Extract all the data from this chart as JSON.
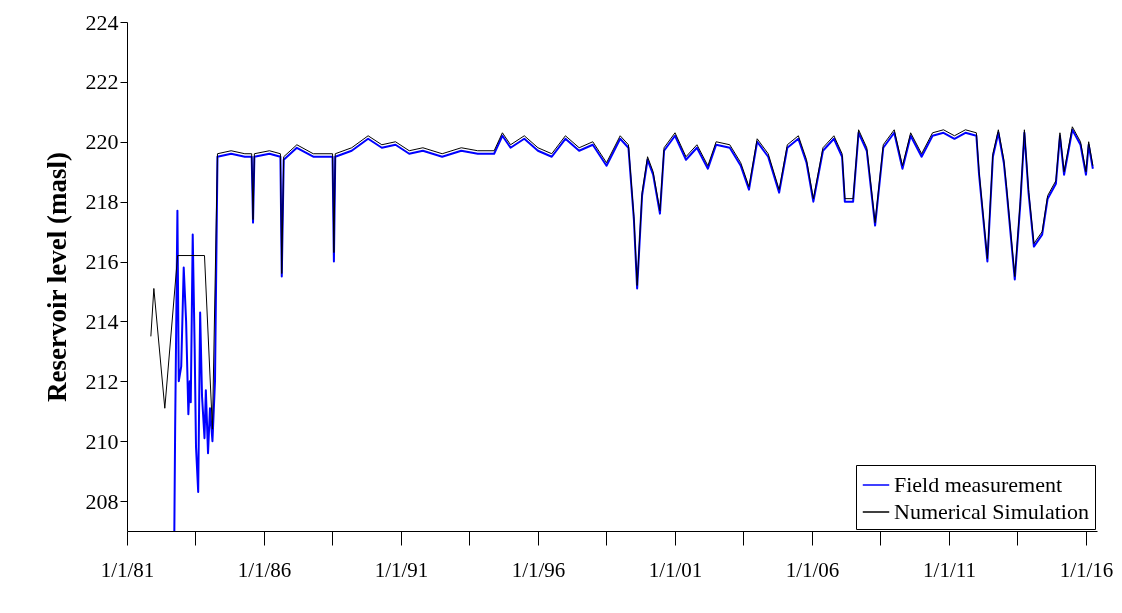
{
  "chart_data": {
    "type": "line",
    "ylabel": "Reservoir level (masl)",
    "xlim": [
      "1981-01-01",
      "2016-05-27"
    ],
    "ylim": [
      207,
      224
    ],
    "xticks": [
      {
        "value": "1981-01-01",
        "label": "1/1/81"
      },
      {
        "value": "1983-07-02",
        "label": null
      },
      {
        "value": "1986-01-01",
        "label": "1/1/86"
      },
      {
        "value": "1988-07-02",
        "label": null
      },
      {
        "value": "1991-01-01",
        "label": "1/1/91"
      },
      {
        "value": "1993-07-02",
        "label": null
      },
      {
        "value": "1996-01-01",
        "label": "1/1/96"
      },
      {
        "value": "1998-07-02",
        "label": null
      },
      {
        "value": "2001-01-01",
        "label": "1/1/01"
      },
      {
        "value": "2003-07-02",
        "label": null
      },
      {
        "value": "2006-01-01",
        "label": "1/1/06"
      },
      {
        "value": "2008-07-02",
        "label": null
      },
      {
        "value": "2011-01-01",
        "label": "1/1/11"
      },
      {
        "value": "2013-07-02",
        "label": null
      },
      {
        "value": "2016-01-01",
        "label": "1/1/16"
      }
    ],
    "yticks": [
      208,
      210,
      212,
      214,
      216,
      218,
      220,
      222,
      224
    ],
    "grid": false,
    "legend": "bottom right",
    "line_style": "solid",
    "series": [
      {
        "name": "Field measurement",
        "color": "#0000ff",
        "x": [
          "1982-09-24",
          "1982-10-05",
          "1982-11-04",
          "1982-11-22",
          "1982-12-25",
          "1983-01-27",
          "1983-02-28",
          "1983-03-30",
          "1983-04-17",
          "1983-05-01",
          "1983-05-27",
          "1983-06-22",
          "1983-07-10",
          "1983-08-08",
          "1983-09-03",
          "1983-09-28",
          "1983-10-31",
          "1983-11-18",
          "1983-12-17",
          "1984-01-12",
          "1984-02-14",
          "1984-03-19",
          "1984-04-21",
          "1984-10-20",
          "1985-04-21",
          "1985-07-21",
          "1985-08-08",
          "1985-08-26",
          "1986-03-15",
          "1986-08-08",
          "1986-08-26",
          "1986-09-21",
          "1987-03-15",
          "1987-10-20",
          "1988-07-03",
          "1988-07-21",
          "1988-08-08",
          "1989-03-15",
          "1989-10-20",
          "1990-04-21",
          "1990-10-20",
          "1991-04-21",
          "1991-10-20",
          "1992-07-03",
          "1993-03-15",
          "1993-10-20",
          "1994-05-27",
          "1994-09-14",
          "1995-01-01",
          "1995-07-03",
          "1996-01-01",
          "1996-07-03",
          "1997-01-01",
          "1997-07-03",
          "1998-01-01",
          "1998-07-03",
          "1999-01-01",
          "1999-04-21",
          "1999-07-03",
          "1999-08-15",
          "1999-10-20",
          "2000-01-01",
          "2000-03-15",
          "2000-06-14",
          "2000-08-08",
          "2001-01-01",
          "2001-05-27",
          "2001-10-20",
          "2002-03-15",
          "2002-07-03",
          "2003-01-01",
          "2003-05-27",
          "2003-09-14",
          "2004-01-01",
          "2004-05-27",
          "2004-10-20",
          "2005-02-06",
          "2005-07-03",
          "2005-10-20",
          "2006-01-19",
          "2006-05-27",
          "2006-10-20",
          "2007-02-06",
          "2007-03-15",
          "2007-07-03",
          "2007-09-14",
          "2008-01-01",
          "2008-04-21",
          "2008-08-08",
          "2009-01-01",
          "2009-04-21",
          "2009-08-08",
          "2010-01-01",
          "2010-05-27",
          "2010-10-20",
          "2011-03-15",
          "2011-08-08",
          "2012-01-01",
          "2012-02-06",
          "2012-05-27",
          "2012-08-08",
          "2012-10-20",
          "2013-01-01",
          "2013-02-06",
          "2013-05-27",
          "2013-08-08",
          "2013-10-02",
          "2013-11-26",
          "2014-02-06",
          "2014-05-27",
          "2014-08-08",
          "2014-11-26",
          "2015-01-19",
          "2015-03-15",
          "2015-07-03",
          "2015-10-20",
          "2016-01-01",
          "2016-02-06",
          "2016-04-02"
        ],
        "values": [
          207.0,
          210.5,
          217.7,
          212.0,
          212.5,
          215.8,
          214.0,
          210.9,
          212.0,
          211.3,
          216.9,
          213.1,
          209.8,
          208.3,
          214.3,
          211.5,
          210.1,
          211.7,
          209.6,
          211.1,
          210.0,
          212.0,
          219.5,
          219.6,
          219.5,
          219.5,
          217.3,
          219.5,
          219.6,
          219.5,
          215.5,
          219.4,
          219.8,
          219.5,
          219.5,
          216.0,
          219.5,
          219.7,
          220.1,
          219.8,
          219.9,
          219.6,
          219.7,
          219.5,
          219.7,
          219.6,
          219.6,
          220.2,
          219.8,
          220.1,
          219.7,
          219.5,
          220.1,
          219.7,
          219.9,
          219.2,
          220.1,
          219.8,
          217.4,
          215.1,
          218.2,
          219.4,
          218.9,
          217.6,
          219.7,
          220.2,
          219.4,
          219.8,
          219.1,
          219.9,
          219.8,
          219.2,
          218.4,
          220.0,
          219.5,
          218.3,
          219.8,
          220.1,
          219.3,
          218.0,
          219.7,
          220.1,
          219.5,
          218.0,
          218.0,
          220.3,
          219.7,
          217.2,
          219.8,
          220.3,
          219.1,
          220.2,
          219.5,
          220.2,
          220.3,
          220.1,
          220.3,
          220.2,
          218.9,
          216.0,
          219.5,
          220.3,
          219.3,
          218.4,
          215.4,
          217.9,
          220.3,
          218.3,
          216.5,
          216.9,
          218.1,
          218.6,
          220.2,
          218.9,
          220.4,
          219.9,
          218.9,
          219.9,
          219.1
        ]
      },
      {
        "name": "Numerical Simulation",
        "color": "#000000",
        "x": [
          "1981-11-15",
          "1981-12-25",
          "1982-05-20",
          "1982-11-07",
          "1983-10-31",
          "1984-02-14",
          "1984-04-21",
          "1984-10-20",
          "1985-04-21",
          "1985-07-21",
          "1985-08-08",
          "1985-08-26",
          "1986-03-15",
          "1986-08-08",
          "1986-08-26",
          "1986-09-21",
          "1987-03-15",
          "1987-10-20",
          "1988-07-03",
          "1988-07-21",
          "1988-08-08",
          "1989-03-15",
          "1989-10-20",
          "1990-04-21",
          "1990-10-20",
          "1991-04-21",
          "1991-10-20",
          "1992-07-03",
          "1993-03-15",
          "1993-10-20",
          "1994-05-27",
          "1994-09-14",
          "1995-01-01",
          "1995-07-03",
          "1996-01-01",
          "1996-07-03",
          "1997-01-01",
          "1997-07-03",
          "1998-01-01",
          "1998-07-03",
          "1999-01-01",
          "1999-04-21",
          "1999-07-03",
          "1999-08-15",
          "1999-10-20",
          "2000-01-01",
          "2000-03-15",
          "2000-06-14",
          "2000-08-08",
          "2001-01-01",
          "2001-05-27",
          "2001-10-20",
          "2002-03-15",
          "2002-07-03",
          "2003-01-01",
          "2003-05-27",
          "2003-09-14",
          "2004-01-01",
          "2004-05-27",
          "2004-10-20",
          "2005-02-06",
          "2005-07-03",
          "2005-10-20",
          "2006-01-19",
          "2006-05-27",
          "2006-10-20",
          "2007-02-06",
          "2007-03-15",
          "2007-07-03",
          "2007-09-14",
          "2008-01-01",
          "2008-04-21",
          "2008-08-08",
          "2009-01-01",
          "2009-04-21",
          "2009-08-08",
          "2010-01-01",
          "2010-05-27",
          "2010-10-20",
          "2011-03-15",
          "2011-08-08",
          "2012-01-01",
          "2012-02-06",
          "2012-05-27",
          "2012-08-08",
          "2012-10-20",
          "2013-01-01",
          "2013-02-06",
          "2013-05-27",
          "2013-08-08",
          "2013-10-02",
          "2013-11-26",
          "2014-02-06",
          "2014-05-27",
          "2014-08-08",
          "2014-11-26",
          "2015-01-19",
          "2015-03-15",
          "2015-07-03",
          "2015-10-20",
          "2016-01-01",
          "2016-02-06",
          "2016-04-02"
        ],
        "values": [
          213.5,
          215.1,
          211.1,
          216.2,
          216.2,
          210.4,
          219.6,
          219.7,
          219.6,
          219.6,
          217.4,
          219.6,
          219.7,
          219.6,
          215.6,
          219.5,
          219.9,
          219.6,
          219.6,
          216.3,
          219.6,
          219.8,
          220.2,
          219.9,
          220.0,
          219.7,
          219.8,
          219.6,
          219.8,
          219.7,
          219.7,
          220.3,
          219.9,
          220.2,
          219.8,
          219.6,
          220.2,
          219.8,
          220.0,
          219.3,
          220.2,
          219.9,
          217.5,
          215.2,
          218.3,
          219.5,
          219.0,
          217.7,
          219.8,
          220.3,
          219.5,
          219.9,
          219.2,
          220.0,
          219.9,
          219.3,
          218.5,
          220.1,
          219.6,
          218.4,
          219.9,
          220.2,
          219.4,
          218.1,
          219.8,
          220.2,
          219.6,
          218.1,
          218.1,
          220.4,
          219.8,
          217.3,
          219.9,
          220.4,
          219.2,
          220.3,
          219.6,
          220.3,
          220.4,
          220.2,
          220.4,
          220.3,
          219.0,
          216.1,
          219.6,
          220.4,
          219.4,
          218.5,
          215.5,
          218.0,
          220.4,
          218.4,
          216.6,
          217.0,
          218.2,
          218.7,
          220.3,
          219.0,
          220.5,
          220.0,
          219.0,
          220.0,
          219.2
        ]
      }
    ]
  }
}
